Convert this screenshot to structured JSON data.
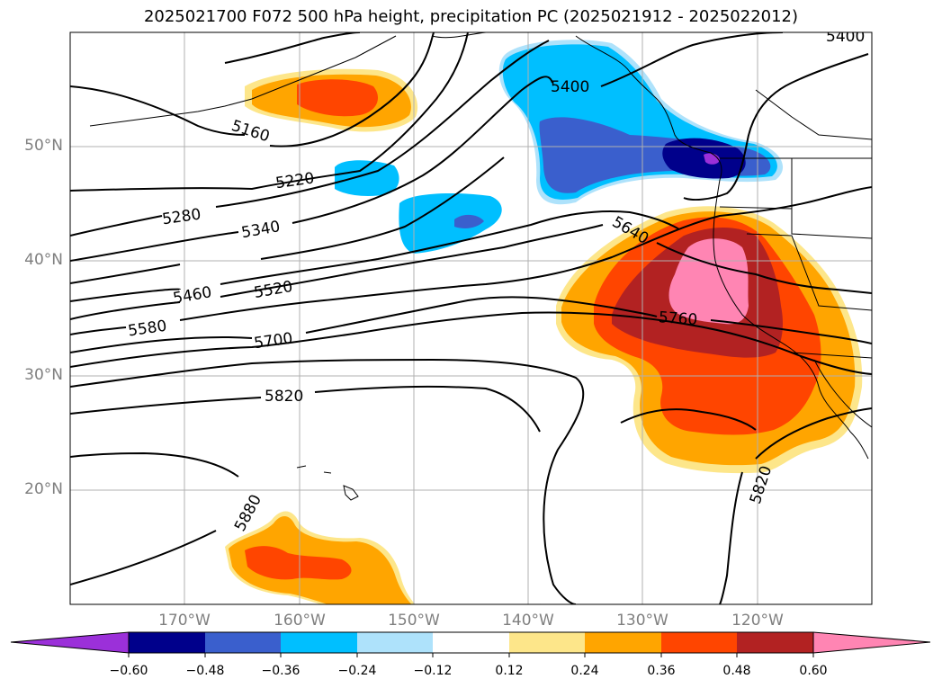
{
  "title": "2025021700 F072 500 hPa height, precipitation PC (2025021912 - 2025022012)",
  "lat_labels": [
    "50°N",
    "40°N",
    "30°N",
    "20°N"
  ],
  "lon_labels": [
    "170°W",
    "160°W",
    "150°W",
    "140°W",
    "130°W",
    "120°W"
  ],
  "contour_labels": [
    "5160",
    "5220",
    "5280",
    "5340",
    "5400",
    "5400",
    "5460",
    "5520",
    "5580",
    "5640",
    "5700",
    "5760",
    "5820",
    "5820",
    "5880"
  ],
  "colorbar": {
    "ticks": [
      "−0.60",
      "−0.48",
      "−0.36",
      "−0.24",
      "−0.12",
      "0.12",
      "0.24",
      "0.36",
      "0.48",
      "0.60"
    ],
    "colors": [
      "#9b30d9",
      "#00008b",
      "#3a5fcd",
      "#00bfff",
      "#aee2fb",
      "#ffffff",
      "#fde68a",
      "#ffa500",
      "#ff4500",
      "#b22222",
      "#ff85b3"
    ]
  }
}
